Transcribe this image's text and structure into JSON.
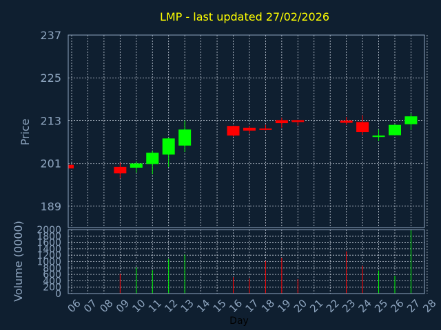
{
  "title": "LMP - last updated 27/02/2026",
  "colors": {
    "up": "#00ff00",
    "down": "#ff0000",
    "text": "#8fa6c0",
    "title": "#ffff00",
    "background": "#0f1f30"
  },
  "chart_data": [
    {
      "type": "candlestick",
      "ylabel": "Price",
      "ylim": [
        183,
        237
      ],
      "yticks": [
        189,
        201,
        213,
        225,
        237
      ],
      "grid": true,
      "x_index_range": [
        0,
        22
      ],
      "categories": [
        "06",
        "07",
        "08",
        "09",
        "10",
        "11",
        "12",
        "13",
        "14",
        "15",
        "16",
        "17",
        "18",
        "19",
        "20",
        "21",
        "22",
        "23",
        "24",
        "25",
        "26",
        "27",
        "28"
      ],
      "candles": [
        {
          "x": "06",
          "open": 200.6,
          "close": 199.6,
          "high": 200.6,
          "low": 199.6
        },
        {
          "x": "09",
          "open": 200.0,
          "close": 198.2,
          "high": 201.2,
          "low": 196.8
        },
        {
          "x": "10",
          "open": 199.8,
          "close": 201.0,
          "high": 201.6,
          "low": 198.4
        },
        {
          "x": "11",
          "open": 200.8,
          "close": 204.0,
          "high": 204.5,
          "low": 198.0
        },
        {
          "x": "12",
          "open": 203.5,
          "close": 208.0,
          "high": 208.2,
          "low": 200.0
        },
        {
          "x": "13",
          "open": 206.0,
          "close": 210.5,
          "high": 213.0,
          "low": 204.2
        },
        {
          "x": "16",
          "open": 211.5,
          "close": 208.8,
          "high": 211.6,
          "low": 208.5
        },
        {
          "x": "17",
          "open": 211.0,
          "close": 210.2,
          "high": 211.5,
          "low": 209.3
        },
        {
          "x": "18",
          "open": 210.8,
          "close": 210.6,
          "high": 211.8,
          "low": 210.3
        },
        {
          "x": "19",
          "open": 213.1,
          "close": 212.3,
          "high": 213.8,
          "low": 211.0
        },
        {
          "x": "20",
          "open": 213.1,
          "close": 212.6,
          "high": 213.2,
          "low": 211.6
        },
        {
          "x": "23",
          "open": 213.0,
          "close": 212.4,
          "high": 214.0,
          "low": 211.8
        },
        {
          "x": "24",
          "open": 212.6,
          "close": 209.8,
          "high": 214.5,
          "low": 209.0
        },
        {
          "x": "25",
          "open": 208.6,
          "close": 208.8,
          "high": 210.5,
          "low": 207.3
        },
        {
          "x": "26",
          "open": 208.9,
          "close": 211.8,
          "high": 212.0,
          "low": 208.9
        },
        {
          "x": "27",
          "open": 212.0,
          "close": 214.2,
          "high": 215.0,
          "low": 210.4
        }
      ]
    },
    {
      "type": "bar",
      "ylabel": "Volume (0000)",
      "xlabel": "Day",
      "ylim": [
        0,
        2000
      ],
      "yticks": [
        0,
        200,
        400,
        600,
        800,
        1000,
        1200,
        1400,
        1600,
        1800,
        2000
      ],
      "grid": true,
      "categories": [
        "06",
        "07",
        "08",
        "09",
        "10",
        "11",
        "12",
        "13",
        "14",
        "15",
        "16",
        "17",
        "18",
        "19",
        "20",
        "21",
        "22",
        "23",
        "24",
        "25",
        "26",
        "27",
        "28"
      ],
      "bars": [
        {
          "x": "09",
          "value": 620,
          "direction": "down"
        },
        {
          "x": "10",
          "value": 820,
          "direction": "up"
        },
        {
          "x": "11",
          "value": 730,
          "direction": "up"
        },
        {
          "x": "12",
          "value": 1080,
          "direction": "up"
        },
        {
          "x": "13",
          "value": 1220,
          "direction": "up"
        },
        {
          "x": "16",
          "value": 510,
          "direction": "down"
        },
        {
          "x": "17",
          "value": 470,
          "direction": "down"
        },
        {
          "x": "18",
          "value": 1020,
          "direction": "down"
        },
        {
          "x": "19",
          "value": 1120,
          "direction": "down"
        },
        {
          "x": "20",
          "value": 450,
          "direction": "down"
        },
        {
          "x": "23",
          "value": 1320,
          "direction": "down"
        },
        {
          "x": "24",
          "value": 870,
          "direction": "down"
        },
        {
          "x": "25",
          "value": 720,
          "direction": "up"
        },
        {
          "x": "26",
          "value": 560,
          "direction": "up"
        },
        {
          "x": "27",
          "value": 1980,
          "direction": "up"
        }
      ]
    }
  ]
}
